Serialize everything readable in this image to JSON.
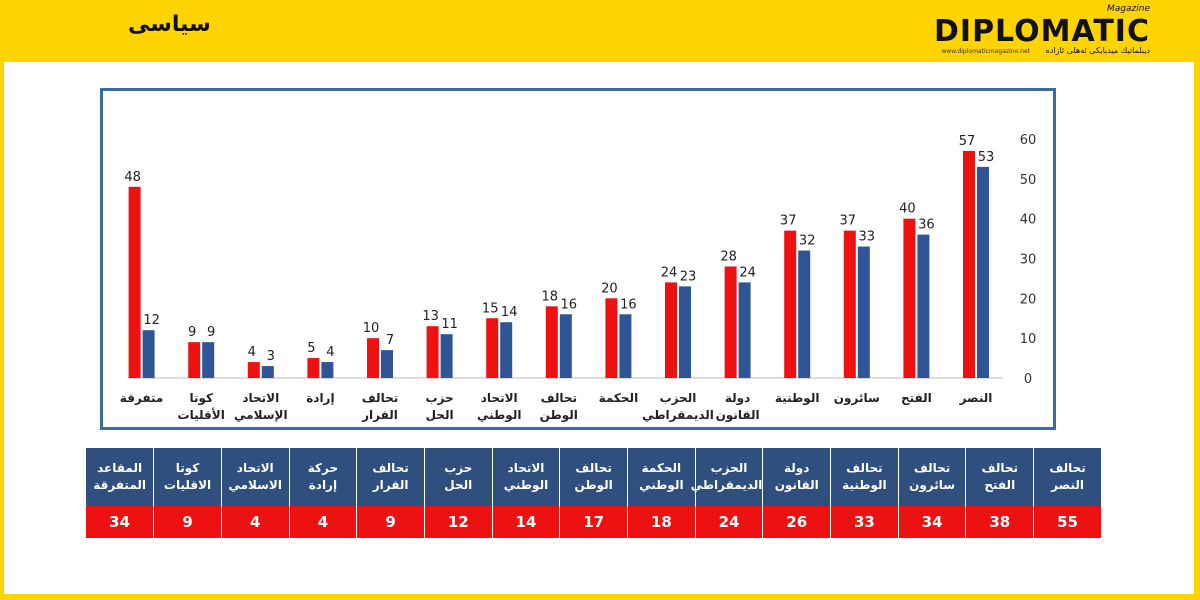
{
  "header": {
    "section_label": "سياسى",
    "logo_text": "DIPLOMATIC",
    "logo_magazine": "Magazine",
    "logo_tagline": "ديبلماتيك ميديايكى ئەھلى ئازادە",
    "logo_url": "www.diplomaticmagazine.net"
  },
  "colors": {
    "red_series": "#ee1111",
    "blue_series": "#2f5597",
    "table_header": "#2f4f7f",
    "table_values": "#ee1111",
    "banner": "#ffd400"
  },
  "chart_data": {
    "type": "bar",
    "categories": [
      "النصر",
      "الفتح",
      "سائرون",
      "الوطنية",
      "دولة القانون",
      "الحزب الديمقراطي",
      "الحكمة",
      "تحالف الوطن",
      "الاتحاد الوطني",
      "حزب الحل",
      "تحالف القرار",
      "إرادة",
      "الاتحاد الإسلامي",
      "كوتا الأقليات",
      "متفرقة"
    ],
    "series": [
      {
        "values": [
          57,
          40,
          37,
          37,
          28,
          24,
          20,
          18,
          15,
          13,
          10,
          5,
          4,
          9,
          48
        ]
      },
      {
        "values": [
          53,
          36,
          33,
          32,
          24,
          23,
          16,
          16,
          14,
          11,
          7,
          4,
          3,
          9,
          12
        ]
      }
    ],
    "yticks": [
      "0",
      "10",
      "20",
      "30",
      "40",
      "50",
      "60"
    ],
    "ylim": [
      0,
      60
    ],
    "grid": false
  },
  "table": {
    "headers": [
      "تحالف النصر",
      "تحالف الفتح",
      "تحالف سائرون",
      "تحالف الوطنية",
      "دولة القانون",
      "الحزب الديمقراطي",
      "الحكمة الوطني",
      "تحالف الوطن",
      "الاتحاد الوطني",
      "حزب الحل",
      "تحالف القرار",
      "حركة إرادة",
      "الاتحاد الاسلامي",
      "كوتا الاقليات",
      "المقاعد المتفرقة"
    ],
    "values": [
      "55",
      "38",
      "34",
      "33",
      "26",
      "24",
      "18",
      "17",
      "14",
      "12",
      "9",
      "4",
      "4",
      "9",
      "34"
    ]
  }
}
